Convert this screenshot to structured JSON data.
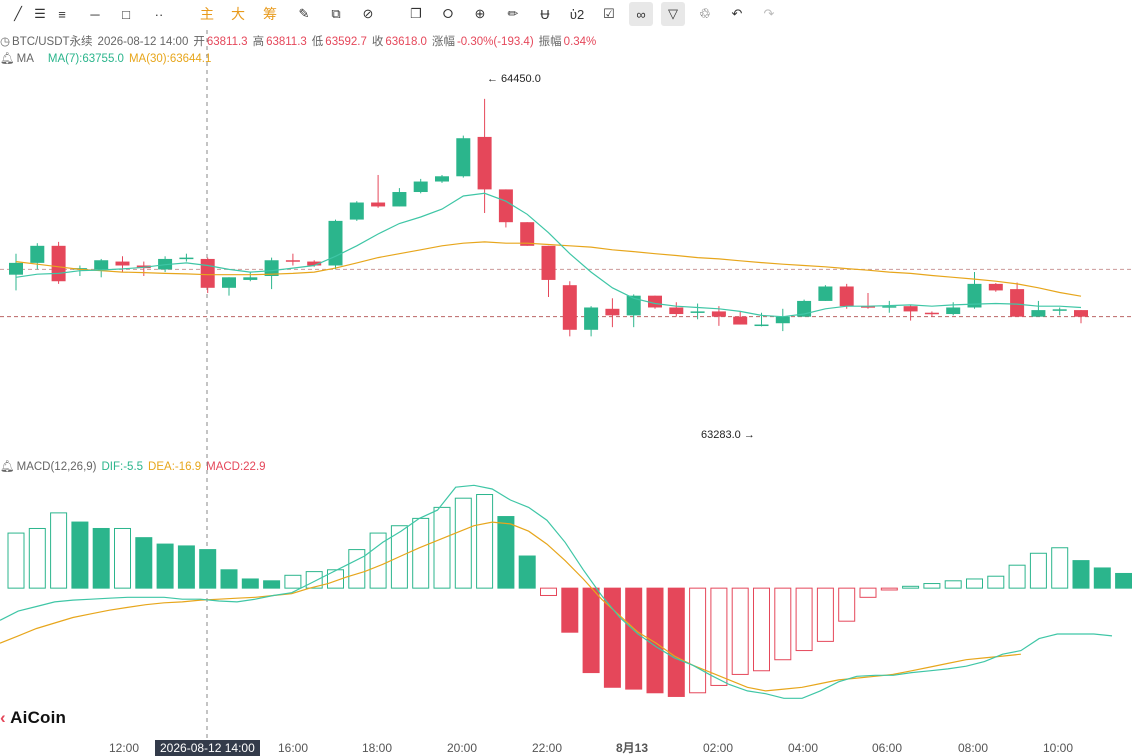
{
  "toolbar": {
    "items": [
      {
        "name": "crosshair-tool-icon",
        "glyph": "╱"
      },
      {
        "name": "horizontal-lines-icon",
        "glyph": "☰"
      },
      {
        "name": "parallel-lines-icon",
        "glyph": "≡"
      },
      {
        "name": "horizontal-segment-icon",
        "glyph": "─"
      },
      {
        "name": "rectangle-icon",
        "glyph": "□"
      },
      {
        "name": "dots-icon",
        "glyph": "··"
      },
      {
        "name": "main-indicator-button",
        "text": "主"
      },
      {
        "name": "large-button",
        "text": "大"
      },
      {
        "name": "chips-button",
        "text": "筹"
      },
      {
        "name": "edit-drawing-icon",
        "glyph": "✎"
      },
      {
        "name": "screenshot-icon",
        "glyph": "⧉"
      },
      {
        "name": "pen-slash-icon",
        "glyph": "⊘"
      },
      {
        "name": "copy-icon",
        "glyph": "❐"
      },
      {
        "name": "ruler-icon",
        "glyph": "⭘"
      },
      {
        "name": "zoom-icon",
        "glyph": "⊕"
      },
      {
        "name": "marker-icon",
        "glyph": "✏"
      },
      {
        "name": "magnet-icon",
        "glyph": "Ʉ"
      },
      {
        "name": "lock-icon",
        "glyph": "ὑ2"
      },
      {
        "name": "checklist-icon",
        "glyph": "☑"
      },
      {
        "name": "link-icon",
        "glyph": "∞"
      },
      {
        "name": "filter-icon",
        "glyph": "▽"
      },
      {
        "name": "trash-icon",
        "glyph": "♲"
      },
      {
        "name": "undo-icon",
        "glyph": "↶"
      },
      {
        "name": "redo-icon",
        "glyph": "↷"
      }
    ]
  },
  "header": {
    "symbol": "BTC/USDT永续",
    "datetime": "2026-08-12 14:00",
    "open_label": "开",
    "open": "63811.3",
    "high_label": "高",
    "high": "63811.3",
    "low_label": "低",
    "low": "63592.7",
    "close_label": "收",
    "close": "63618.0",
    "change_label": "涨幅",
    "change": "-0.30%(-193.4)",
    "amp_label": "振幅",
    "amp": "0.34%"
  },
  "ma_legend": {
    "label": "MA",
    "ma7": "MA(7):63755.0",
    "ma30": "MA(30):63644.1"
  },
  "macd_legend": {
    "label": "MACD(12,26,9)",
    "dif": "DIF:-5.5",
    "dea": "DEA:-16.9",
    "macd": "MACD:22.9"
  },
  "annotations": {
    "high_mark": "← 64450.0",
    "low_mark": "63283.0 →"
  },
  "crosshair_label": "2026-08-12 14:00",
  "logo": "AiCoin",
  "colors": {
    "up": "#2bb58c",
    "down": "#e5475a",
    "ma7": "#3fc6a6",
    "ma30": "#e7a61c"
  },
  "chart_data": {
    "type": "candlestick",
    "x_tick_labels": [
      "12:00",
      "16:00",
      "18:00",
      "20:00",
      "22:00",
      "8月13",
      "02:00",
      "04:00",
      "06:00",
      "08:00",
      "10:00"
    ],
    "price_pane": {
      "ylim": [
        63150,
        64560
      ],
      "reference_lines": [
        63800,
        63620
      ],
      "candles": [
        {
          "o": 63780,
          "h": 63860,
          "l": 63720,
          "c": 63825
        },
        {
          "o": 63825,
          "h": 63900,
          "l": 63800,
          "c": 63890
        },
        {
          "o": 63890,
          "h": 63905,
          "l": 63745,
          "c": 63755
        },
        {
          "o": 63800,
          "h": 63815,
          "l": 63775,
          "c": 63805
        },
        {
          "o": 63800,
          "h": 63840,
          "l": 63770,
          "c": 63835
        },
        {
          "o": 63830,
          "h": 63850,
          "l": 63790,
          "c": 63815
        },
        {
          "o": 63815,
          "h": 63830,
          "l": 63775,
          "c": 63805
        },
        {
          "o": 63800,
          "h": 63850,
          "l": 63790,
          "c": 63840
        },
        {
          "o": 63840,
          "h": 63860,
          "l": 63830,
          "c": 63845
        },
        {
          "o": 63840,
          "h": 63845,
          "l": 63710,
          "c": 63730
        },
        {
          "o": 63730,
          "h": 63770,
          "l": 63700,
          "c": 63770
        },
        {
          "o": 63760,
          "h": 63790,
          "l": 63755,
          "c": 63770
        },
        {
          "o": 63775,
          "h": 63845,
          "l": 63725,
          "c": 63835
        },
        {
          "o": 63835,
          "h": 63860,
          "l": 63815,
          "c": 63830
        },
        {
          "o": 63830,
          "h": 63835,
          "l": 63810,
          "c": 63815
        },
        {
          "o": 63815,
          "h": 63990,
          "l": 63800,
          "c": 63985
        },
        {
          "o": 63990,
          "h": 64060,
          "l": 63985,
          "c": 64055
        },
        {
          "o": 64055,
          "h": 64160,
          "l": 64035,
          "c": 64040
        },
        {
          "o": 64040,
          "h": 64110,
          "l": 64040,
          "c": 64095
        },
        {
          "o": 64095,
          "h": 64145,
          "l": 64090,
          "c": 64135
        },
        {
          "o": 64135,
          "h": 64160,
          "l": 64130,
          "c": 64155
        },
        {
          "o": 64155,
          "h": 64310,
          "l": 64150,
          "c": 64300
        },
        {
          "o": 64305,
          "h": 64450,
          "l": 64015,
          "c": 64105
        },
        {
          "o": 64105,
          "h": 64105,
          "l": 63960,
          "c": 63980
        },
        {
          "o": 63980,
          "h": 63980,
          "l": 63890,
          "c": 63890
        },
        {
          "o": 63890,
          "h": 63890,
          "l": 63695,
          "c": 63760
        },
        {
          "o": 63740,
          "h": 63755,
          "l": 63545,
          "c": 63570
        },
        {
          "o": 63570,
          "h": 63660,
          "l": 63545,
          "c": 63655
        },
        {
          "o": 63650,
          "h": 63690,
          "l": 63580,
          "c": 63625
        },
        {
          "o": 63625,
          "h": 63705,
          "l": 63580,
          "c": 63700
        },
        {
          "o": 63700,
          "h": 63700,
          "l": 63650,
          "c": 63655
        },
        {
          "o": 63655,
          "h": 63675,
          "l": 63620,
          "c": 63630
        },
        {
          "o": 63635,
          "h": 63670,
          "l": 63610,
          "c": 63640
        },
        {
          "o": 63640,
          "h": 63660,
          "l": 63585,
          "c": 63620
        },
        {
          "o": 63620,
          "h": 63640,
          "l": 63590,
          "c": 63590
        },
        {
          "o": 63590,
          "h": 63635,
          "l": 63583,
          "c": 63590
        },
        {
          "o": 63595,
          "h": 63650,
          "l": 63565,
          "c": 63620
        },
        {
          "o": 63620,
          "h": 63685,
          "l": 63620,
          "c": 63680
        },
        {
          "o": 63680,
          "h": 63740,
          "l": 63680,
          "c": 63735
        },
        {
          "o": 63735,
          "h": 63745,
          "l": 63650,
          "c": 63660
        },
        {
          "o": 63660,
          "h": 63710,
          "l": 63650,
          "c": 63655
        },
        {
          "o": 63655,
          "h": 63680,
          "l": 63635,
          "c": 63660
        },
        {
          "o": 63660,
          "h": 63665,
          "l": 63605,
          "c": 63640
        },
        {
          "o": 63635,
          "h": 63640,
          "l": 63620,
          "c": 63630
        },
        {
          "o": 63630,
          "h": 63675,
          "l": 63625,
          "c": 63655
        },
        {
          "o": 63655,
          "h": 63790,
          "l": 63650,
          "c": 63745
        },
        {
          "o": 63745,
          "h": 63748,
          "l": 63715,
          "c": 63720
        },
        {
          "o": 63725,
          "h": 63750,
          "l": 63620,
          "c": 63620
        },
        {
          "o": 63620,
          "h": 63680,
          "l": 63620,
          "c": 63645
        },
        {
          "o": 63645,
          "h": 63655,
          "l": 63625,
          "c": 63648
        },
        {
          "o": 63645,
          "h": 63645,
          "l": 63595,
          "c": 63620
        }
      ],
      "ma7": [
        63770,
        63782,
        63785,
        63795,
        63798,
        63802,
        63808,
        63818,
        63825,
        63815,
        63800,
        63790,
        63795,
        63805,
        63815,
        63850,
        63890,
        63935,
        63975,
        64000,
        64030,
        64080,
        64090,
        64060,
        64010,
        63940,
        63860,
        63790,
        63730,
        63690,
        63670,
        63660,
        63655,
        63650,
        63640,
        63625,
        63620,
        63630,
        63650,
        63660,
        63660,
        63662,
        63665,
        63660,
        63665,
        63668,
        63670,
        63668,
        63660,
        63660,
        63655
      ],
      "ma30": [
        63830,
        63820,
        63810,
        63800,
        63795,
        63790,
        63788,
        63785,
        63783,
        63780,
        63780,
        63780,
        63782,
        63785,
        63790,
        63805,
        63825,
        63845,
        63860,
        63875,
        63890,
        63900,
        63905,
        63900,
        63900,
        63895,
        63890,
        63885,
        63875,
        63868,
        63860,
        63853,
        63845,
        63840,
        63833,
        63826,
        63820,
        63815,
        63810,
        63803,
        63797,
        63790,
        63785,
        63777,
        63770,
        63763,
        63755,
        63745,
        63730,
        63712,
        63698
      ]
    },
    "macd_pane": {
      "ylim": [
        -160,
        120
      ],
      "histogram": [
        60,
        65,
        82,
        72,
        65,
        65,
        55,
        48,
        46,
        42,
        20,
        10,
        8,
        14,
        18,
        20,
        42,
        60,
        68,
        76,
        88,
        98,
        102,
        78,
        35,
        -8,
        -48,
        -92,
        -108,
        -110,
        -114,
        -118,
        -114,
        -106,
        -94,
        -90,
        -78,
        -68,
        -58,
        -36,
        -10,
        -2,
        2,
        5,
        8,
        10,
        13,
        25,
        38,
        44,
        30,
        22,
        16
      ],
      "dif": [
        -35,
        -25,
        -20,
        -15,
        -13,
        -12,
        -11,
        -10,
        -10,
        -10,
        -12,
        -12,
        -14,
        -15,
        -12,
        -8,
        -5,
        5,
        15,
        25,
        35,
        50,
        62,
        76,
        85,
        110,
        112,
        108,
        96,
        88,
        74,
        50,
        20,
        -8,
        -32,
        -50,
        -64,
        -76,
        -84,
        -95,
        -105,
        -112,
        -115,
        -120,
        -120,
        -112,
        -102,
        -96,
        -95,
        -95,
        -92,
        -90,
        -88,
        -85,
        -80,
        -72,
        -68,
        -55,
        -50,
        -50,
        -50,
        -52
      ],
      "dea": [
        -60,
        -52,
        -44,
        -38,
        -32,
        -28,
        -24,
        -21,
        -18,
        -16,
        -15,
        -13,
        -12,
        -11,
        -10,
        -8,
        -6,
        0,
        5,
        12,
        18,
        26,
        35,
        44,
        52,
        60,
        68,
        72,
        70,
        62,
        48,
        30,
        10,
        -12,
        -30,
        -48,
        -60,
        -74,
        -84,
        -92,
        -100,
        -108,
        -112,
        -110,
        -108,
        -104,
        -100,
        -98,
        -96,
        -94,
        -90,
        -86,
        -82,
        -78,
        -76,
        -74,
        -72
      ]
    }
  }
}
